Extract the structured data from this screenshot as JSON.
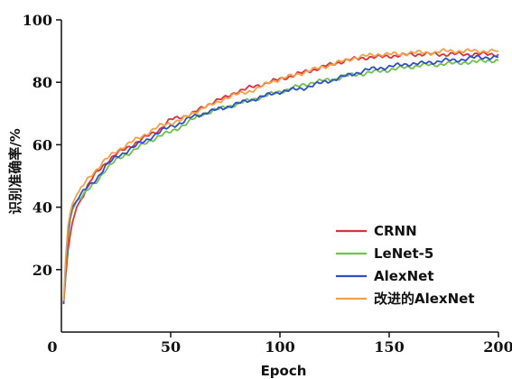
{
  "chart_data": {
    "type": "line",
    "xlabel": "Epoch",
    "ylabel": "识别准确率/%",
    "xlim": [
      0,
      200
    ],
    "ylim": [
      0,
      100
    ],
    "xticks": [
      0,
      50,
      100,
      150,
      200
    ],
    "yticks": [
      20,
      40,
      60,
      80,
      100
    ],
    "legend_position": "bottom-right",
    "grid": false,
    "series": [
      {
        "name": "CRNN",
        "color": "#e0303a",
        "x": [
          1,
          2,
          3,
          4,
          5,
          7,
          10,
          13,
          16,
          20,
          25,
          30,
          35,
          40,
          45,
          50,
          55,
          60,
          65,
          70,
          75,
          80,
          85,
          90,
          95,
          100,
          105,
          110,
          115,
          120,
          125,
          130,
          135,
          140,
          145,
          150,
          155,
          160,
          165,
          170,
          175,
          180,
          185,
          190,
          195,
          200
        ],
        "y": [
          9,
          18,
          26,
          31,
          35,
          40,
          44,
          48,
          51,
          54,
          57,
          59,
          61,
          63,
          65,
          68,
          69,
          70,
          72,
          74,
          75,
          77,
          78,
          79,
          80,
          81,
          82,
          83,
          84,
          85,
          86,
          87,
          87.5,
          88,
          88,
          88.5,
          88.5,
          89,
          89,
          89,
          89,
          89,
          89,
          89,
          89,
          89
        ]
      },
      {
        "name": "LeNet-5",
        "color": "#6cc24a",
        "x": [
          1,
          2,
          3,
          4,
          5,
          7,
          10,
          13,
          16,
          20,
          25,
          30,
          35,
          40,
          45,
          50,
          55,
          60,
          65,
          70,
          75,
          80,
          85,
          90,
          95,
          100,
          105,
          110,
          115,
          120,
          125,
          130,
          135,
          140,
          145,
          150,
          155,
          160,
          165,
          170,
          175,
          180,
          185,
          190,
          195,
          200
        ],
        "y": [
          9,
          20,
          30,
          36,
          39,
          42,
          44,
          46,
          48,
          52,
          55,
          57,
          59,
          61,
          63,
          64,
          66,
          68,
          70,
          71,
          72,
          73,
          74,
          75,
          76,
          77,
          78,
          79,
          80,
          80.5,
          81,
          82,
          82.5,
          83,
          83.5,
          84,
          84.5,
          85,
          85.5,
          85.5,
          86,
          86,
          86.5,
          86.5,
          87,
          87
        ]
      },
      {
        "name": "AlexNet",
        "color": "#2f4fc8",
        "x": [
          1,
          2,
          3,
          4,
          5,
          7,
          10,
          13,
          16,
          20,
          25,
          30,
          35,
          40,
          45,
          50,
          55,
          60,
          65,
          70,
          75,
          80,
          85,
          90,
          95,
          100,
          105,
          110,
          115,
          120,
          125,
          130,
          135,
          140,
          145,
          150,
          155,
          160,
          165,
          170,
          175,
          180,
          185,
          190,
          195,
          200
        ],
        "y": [
          9,
          22,
          32,
          37,
          40,
          42,
          45,
          47,
          49,
          53,
          56,
          58,
          60,
          62,
          64,
          66,
          67,
          69,
          70,
          71,
          72,
          73,
          74,
          75,
          76,
          77,
          77.5,
          78,
          79,
          80,
          81,
          82,
          83,
          84,
          84.5,
          85,
          85.5,
          86,
          86,
          86.5,
          87,
          87,
          87.5,
          88,
          88,
          88
        ]
      },
      {
        "name": "改进的AlexNet",
        "color": "#f5a142",
        "x": [
          1,
          2,
          3,
          4,
          5,
          7,
          10,
          13,
          16,
          20,
          25,
          30,
          35,
          40,
          45,
          50,
          55,
          60,
          65,
          70,
          75,
          80,
          85,
          90,
          95,
          100,
          105,
          110,
          115,
          120,
          125,
          130,
          135,
          140,
          145,
          150,
          155,
          160,
          165,
          170,
          175,
          180,
          185,
          190,
          195,
          200
        ],
        "y": [
          10,
          24,
          34,
          38,
          41,
          44,
          47,
          50,
          52,
          55,
          58,
          60,
          62,
          64,
          66,
          67,
          68,
          70,
          72,
          73,
          75,
          76,
          77,
          78,
          80,
          81,
          82,
          83,
          84,
          85,
          86,
          87,
          88,
          88.5,
          89,
          89,
          89,
          89.5,
          89.5,
          89.5,
          90,
          90,
          90,
          90,
          90,
          90
        ]
      }
    ]
  }
}
